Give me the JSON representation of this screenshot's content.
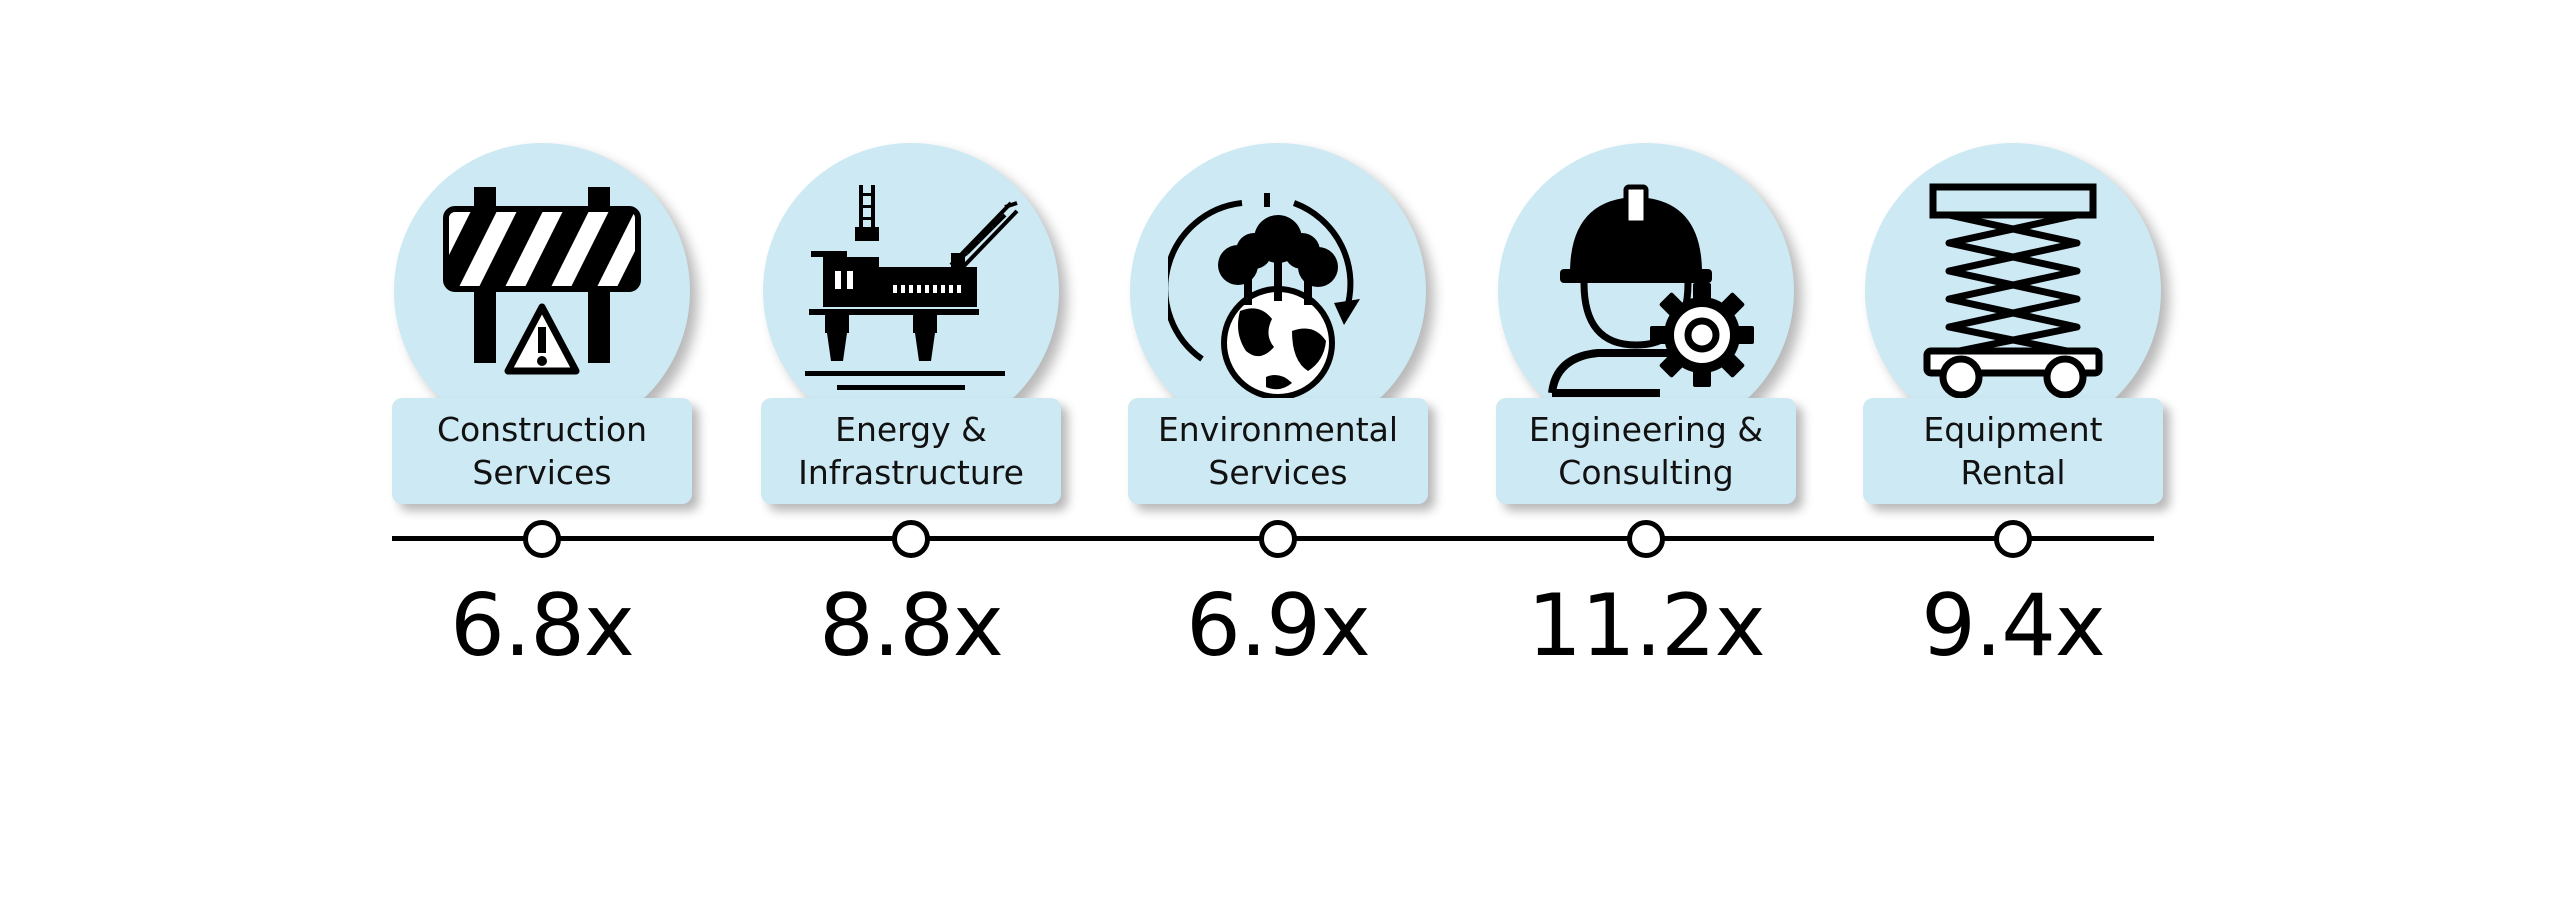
{
  "colors": {
    "circle_fill": "#cde9f3",
    "icon": "#000000",
    "line": "#000000"
  },
  "segments": [
    {
      "line1": "Construction",
      "line2": "Services",
      "value": "6.8x",
      "icon": "barricade-warning-icon"
    },
    {
      "line1": "Energy &",
      "line2": "Infrastructure",
      "value": "8.8x",
      "icon": "offshore-oil-platform-icon"
    },
    {
      "line1": "Environmental",
      "line2": "Services",
      "value": "6.9x",
      "icon": "earth-trees-cycle-icon"
    },
    {
      "line1": "Engineering &",
      "line2": "Consulting",
      "value": "11.2x",
      "icon": "engineer-gear-icon"
    },
    {
      "line1": "Equipment",
      "line2": "Rental",
      "value": "9.4x",
      "icon": "scissor-lift-icon"
    }
  ]
}
